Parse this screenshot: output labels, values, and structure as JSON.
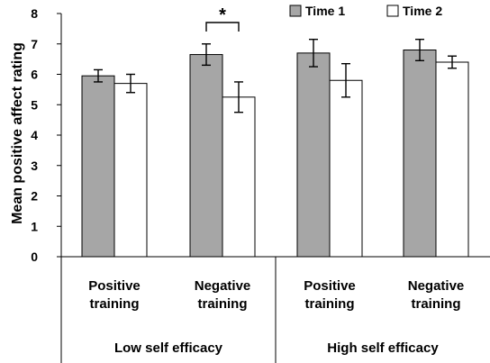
{
  "chart_data": {
    "type": "bar",
    "title": "",
    "xlabel": "",
    "ylabel": "Mean positive affect rating",
    "ylim": [
      0,
      8
    ],
    "yticks": [
      "0",
      "1",
      "2",
      "3",
      "4",
      "5",
      "6",
      "7",
      "8"
    ],
    "legend_position": "top-right",
    "grid": false,
    "groups": [
      {
        "label": "Low self efficacy",
        "categories": [
          {
            "label_lines": [
              "Positive",
              "training"
            ]
          },
          {
            "label_lines": [
              "Negative",
              "training"
            ]
          }
        ]
      },
      {
        "label": "High self efficacy",
        "categories": [
          {
            "label_lines": [
              "Positive",
              "training"
            ]
          },
          {
            "label_lines": [
              "Negative",
              "training"
            ]
          }
        ]
      }
    ],
    "series": [
      {
        "name": "Time 1",
        "color": "#a6a6a6",
        "values": [
          5.95,
          6.65,
          6.7,
          6.8
        ],
        "errors": [
          0.2,
          0.35,
          0.45,
          0.35
        ]
      },
      {
        "name": "Time 2",
        "color": "#ffffff",
        "values": [
          5.7,
          5.25,
          5.8,
          6.4
        ],
        "errors": [
          0.3,
          0.5,
          0.55,
          0.2
        ]
      }
    ],
    "annotations": [
      {
        "text": "*",
        "category_index": 1,
        "type": "significance-bracket"
      }
    ]
  }
}
